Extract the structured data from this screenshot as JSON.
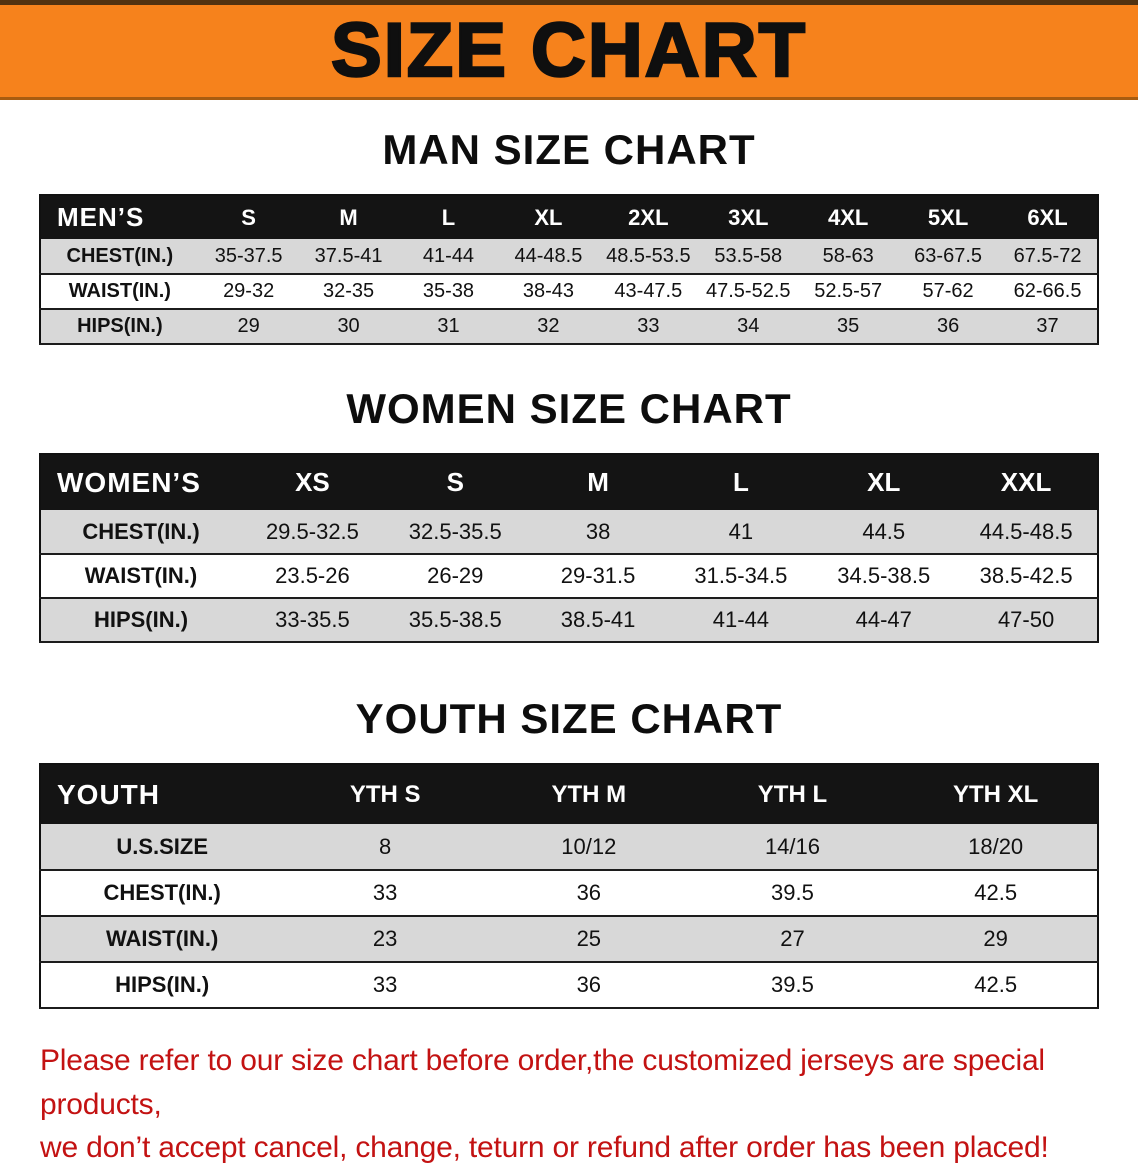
{
  "banner": {
    "title": "SIZE CHART",
    "bg_color": "#f6821c"
  },
  "sections": {
    "men": {
      "title": "MAN SIZE CHART",
      "header_label": "MEN’S",
      "columns": [
        "S",
        "M",
        "L",
        "XL",
        "2XL",
        "3XL",
        "4XL",
        "5XL",
        "6XL"
      ],
      "rows": [
        {
          "label": "CHEST(IN.)",
          "values": [
            "35-37.5",
            "37.5-41",
            "41-44",
            "44-48.5",
            "48.5-53.5",
            "53.5-58",
            "58-63",
            "63-67.5",
            "67.5-72"
          ]
        },
        {
          "label": "WAIST(IN.)",
          "values": [
            "29-32",
            "32-35",
            "35-38",
            "38-43",
            "43-47.5",
            "47.5-52.5",
            "52.5-57",
            "57-62",
            "62-66.5"
          ]
        },
        {
          "label": "HIPS(IN.)",
          "values": [
            "29",
            "30",
            "31",
            "32",
            "33",
            "34",
            "35",
            "36",
            "37"
          ]
        }
      ]
    },
    "women": {
      "title": "WOMEN SIZE CHART",
      "header_label": "WOMEN’S",
      "columns": [
        "XS",
        "S",
        "M",
        "L",
        "XL",
        "XXL"
      ],
      "rows": [
        {
          "label": "CHEST(IN.)",
          "values": [
            "29.5-32.5",
            "32.5-35.5",
            "38",
            "41",
            "44.5",
            "44.5-48.5"
          ]
        },
        {
          "label": "WAIST(IN.)",
          "values": [
            "23.5-26",
            "26-29",
            "29-31.5",
            "31.5-34.5",
            "34.5-38.5",
            "38.5-42.5"
          ]
        },
        {
          "label": "HIPS(IN.)",
          "values": [
            "33-35.5",
            "35.5-38.5",
            "38.5-41",
            "41-44",
            "44-47",
            "47-50"
          ]
        }
      ]
    },
    "youth": {
      "title": "YOUTH SIZE CHART",
      "header_label": "YOUTH",
      "columns": [
        "YTH S",
        "YTH M",
        "YTH L",
        "YTH XL"
      ],
      "rows": [
        {
          "label": "U.S.SIZE",
          "values": [
            "8",
            "10/12",
            "14/16",
            "18/20"
          ]
        },
        {
          "label": "CHEST(IN.)",
          "values": [
            "33",
            "36",
            "39.5",
            "42.5"
          ]
        },
        {
          "label": "WAIST(IN.)",
          "values": [
            "23",
            "25",
            "27",
            "29"
          ]
        },
        {
          "label": "HIPS(IN.)",
          "values": [
            "33",
            "36",
            "39.5",
            "42.5"
          ]
        }
      ]
    }
  },
  "footer": {
    "line1": "Please refer to our size chart before order,the customized jerseys are special products,",
    "line2": "we don’t accept cancel, change, teturn or refund after order has been placed!",
    "text_color": "#c31212"
  }
}
